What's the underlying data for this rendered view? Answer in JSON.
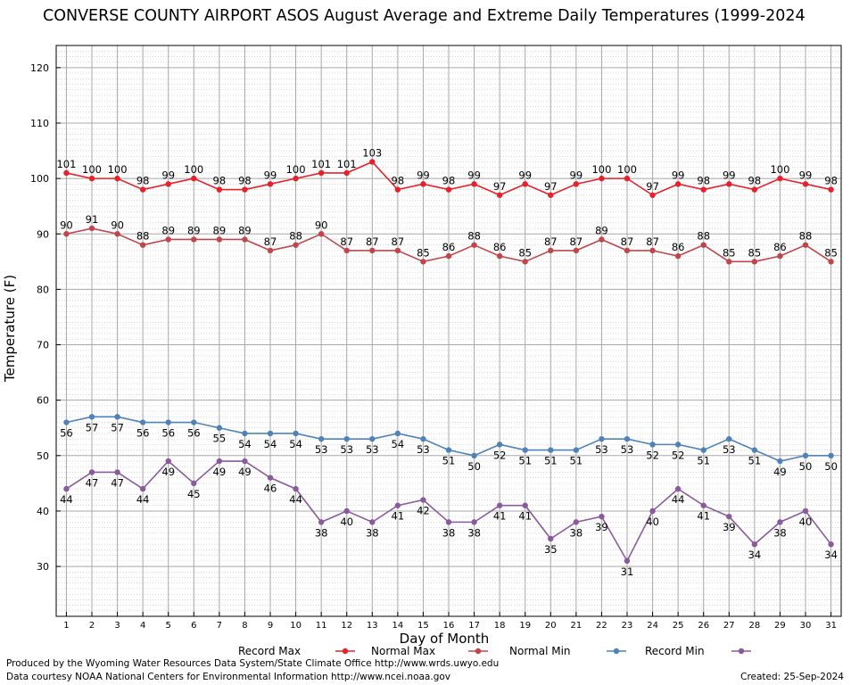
{
  "title": "CONVERSE COUNTY AIRPORT ASOS August Average and Extreme Daily Temperatures (1999-2024",
  "footer": {
    "produced_by": "Produced by the Wyoming Water Resources Data System/State Climate Office http://www.wrds.uwyo.edu",
    "courtesy": "Data courtesy NOAA National Centers for Environmental Information http://www.ncei.noaa.gov",
    "created": "Created:  25-Sep-2024"
  },
  "chart_data": {
    "type": "line",
    "title": "CONVERSE COUNTY AIRPORT ASOS August Average and Extreme Daily Temperatures (1999-2024",
    "xlabel": "Day of Month",
    "ylabel": "Temperature (F)",
    "xlim": [
      0.6,
      31.4
    ],
    "ylim": [
      21,
      124
    ],
    "yticks": [
      30,
      40,
      50,
      60,
      70,
      80,
      90,
      100,
      110,
      120
    ],
    "x": [
      1,
      2,
      3,
      4,
      5,
      6,
      7,
      8,
      9,
      10,
      11,
      12,
      13,
      14,
      15,
      16,
      17,
      18,
      19,
      20,
      21,
      22,
      23,
      24,
      25,
      26,
      27,
      28,
      29,
      30,
      31
    ],
    "grid": true,
    "legend_position": "bottom",
    "series": [
      {
        "name": "Record Max",
        "color": "#e8202a",
        "label_position": "above",
        "values": [
          101,
          100,
          100,
          98,
          99,
          100,
          98,
          98,
          99,
          100,
          101,
          101,
          103,
          98,
          99,
          98,
          99,
          97,
          99,
          97,
          99,
          100,
          100,
          97,
          99,
          98,
          99,
          98,
          100,
          99,
          98
        ]
      },
      {
        "name": "Normal Max",
        "color": "#c0464b",
        "label_position": "above",
        "values": [
          90,
          91,
          90,
          88,
          89,
          89,
          89,
          89,
          87,
          88,
          90,
          87,
          87,
          87,
          85,
          86,
          88,
          86,
          85,
          87,
          87,
          89,
          87,
          87,
          86,
          88,
          85,
          85,
          86,
          88,
          85
        ]
      },
      {
        "name": "Normal Min",
        "color": "#4f82b8",
        "label_position": "below",
        "values": [
          56,
          57,
          57,
          56,
          56,
          56,
          55,
          54,
          54,
          54,
          53,
          53,
          53,
          54,
          53,
          51,
          50,
          52,
          51,
          51,
          51,
          53,
          53,
          52,
          52,
          51,
          53,
          51,
          49,
          50,
          50
        ]
      },
      {
        "name": "Record Min",
        "color": "#8a5a9c",
        "label_position": "below",
        "values": [
          44,
          47,
          47,
          44,
          49,
          45,
          49,
          49,
          46,
          44,
          38,
          40,
          38,
          41,
          42,
          38,
          38,
          41,
          41,
          35,
          38,
          39,
          31,
          40,
          44,
          41,
          39,
          34,
          38,
          40,
          34
        ]
      }
    ]
  }
}
